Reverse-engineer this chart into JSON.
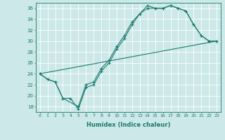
{
  "xlabel": "Humidex (Indice chaleur)",
  "ylabel": "",
  "bg_color": "#cce8e8",
  "grid_color": "#b0d4d4",
  "line_color": "#1a7a6e",
  "xlim": [
    -0.5,
    23.5
  ],
  "ylim": [
    17,
    37
  ],
  "xticks": [
    0,
    1,
    2,
    3,
    4,
    5,
    6,
    7,
    8,
    9,
    10,
    11,
    12,
    13,
    14,
    15,
    16,
    17,
    18,
    19,
    20,
    21,
    22,
    23
  ],
  "yticks": [
    18,
    20,
    22,
    24,
    26,
    28,
    30,
    32,
    34,
    36
  ],
  "line1_x": [
    0,
    1,
    2,
    3,
    4,
    5,
    6,
    7,
    8,
    9,
    10,
    11,
    12,
    13,
    14,
    15,
    16,
    17,
    18,
    19,
    20,
    21,
    22,
    23
  ],
  "line1_y": [
    24,
    23,
    22.5,
    19.5,
    19.5,
    17.5,
    21.5,
    22,
    24.5,
    26,
    28.5,
    30.5,
    33,
    35,
    36,
    36,
    36,
    36.5,
    36,
    35.5,
    33,
    31,
    30,
    30
  ],
  "line2_x": [
    0,
    1,
    2,
    3,
    5,
    6,
    7,
    8,
    9,
    10,
    11,
    12,
    13,
    14,
    15,
    16,
    17,
    18,
    19,
    20,
    21,
    22,
    23
  ],
  "line2_y": [
    24,
    23,
    22.5,
    19.5,
    18,
    22,
    22.5,
    25,
    26.5,
    29,
    31,
    33.5,
    35,
    36.5,
    36,
    36,
    36.5,
    36,
    35.5,
    33,
    31,
    30,
    30
  ],
  "line3_x": [
    0,
    23
  ],
  "line3_y": [
    24,
    30
  ]
}
